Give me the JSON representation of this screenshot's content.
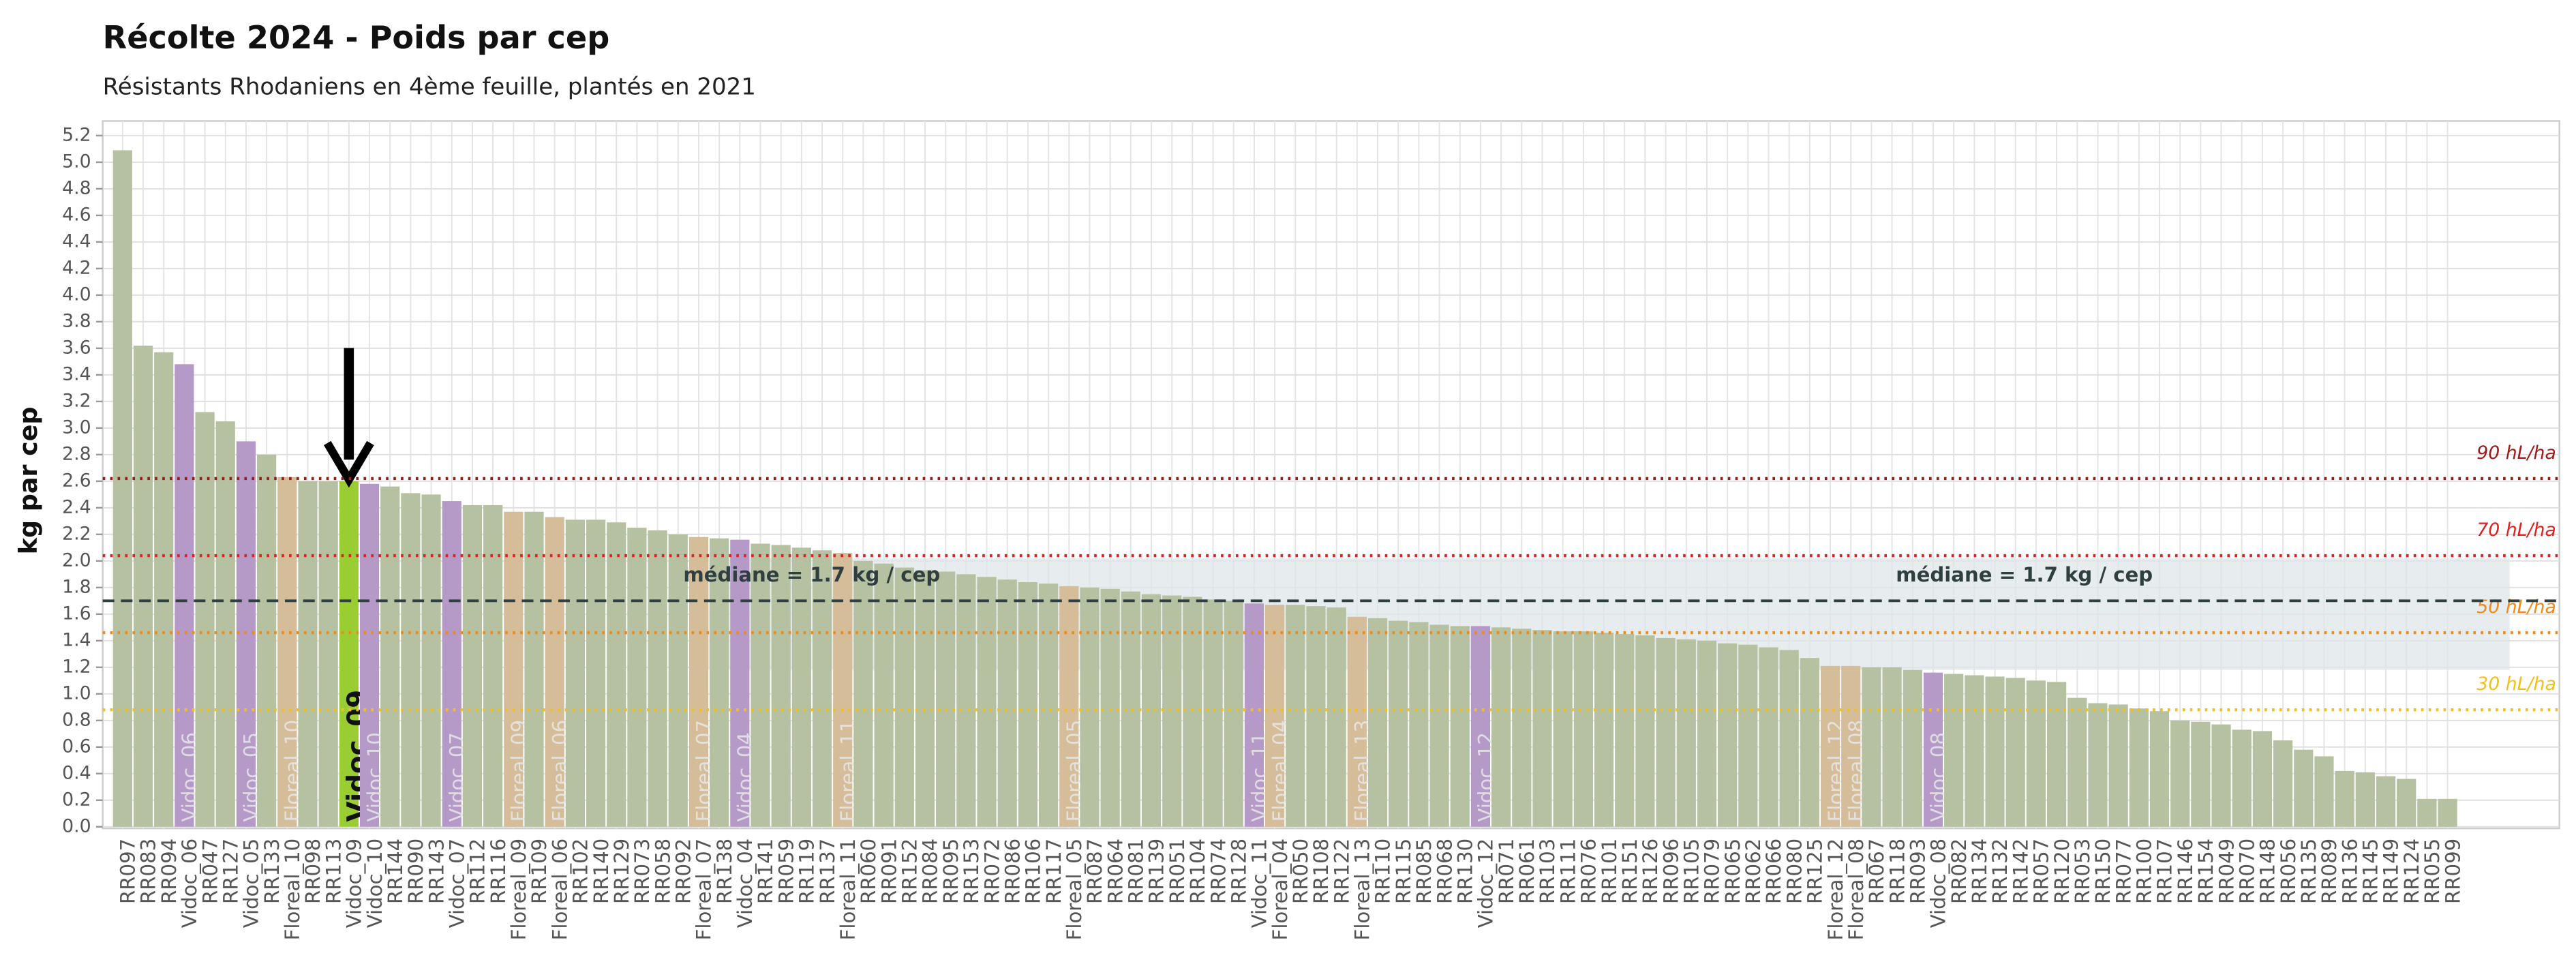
{
  "chart_data": {
    "type": "bar",
    "title": "Récolte 2024 - Poids par cep",
    "subtitle": "Résistants Rhodaniens en 4ème feuille, plantés en 2021",
    "y_label": "kg par cep",
    "categories": [
      "RR097",
      "RR083",
      "RR094",
      "Vidoc_06",
      "RR047",
      "RR127",
      "Vidoc_05",
      "RR133",
      "Floreal_10",
      "RR098",
      "RR113",
      "Vidoc_09",
      "Vidoc_10",
      "RR144",
      "RR090",
      "RR143",
      "Vidoc_07",
      "RR112",
      "RR116",
      "Floreal_09",
      "RR109",
      "Floreal_06",
      "RR102",
      "RR140",
      "RR129",
      "RR073",
      "RR058",
      "RR092",
      "Floreal_07",
      "RR138",
      "Vidoc_04",
      "RR141",
      "RR059",
      "RR119",
      "RR137",
      "Floreal_11",
      "RR060",
      "RR091",
      "RR152",
      "RR084",
      "RR095",
      "RR153",
      "RR072",
      "RR086",
      "RR106",
      "RR117",
      "Floreal_05",
      "RR087",
      "RR064",
      "RR081",
      "RR139",
      "RR051",
      "RR104",
      "RR074",
      "RR128",
      "Vidoc_11",
      "Floreal_04",
      "RR050",
      "RR108",
      "RR122",
      "Floreal_13",
      "RR110",
      "RR115",
      "RR085",
      "RR068",
      "RR130",
      "Vidoc_12",
      "RR071",
      "RR061",
      "RR103",
      "RR111",
      "RR076",
      "RR101",
      "RR151",
      "RR126",
      "RR096",
      "RR105",
      "RR079",
      "RR065",
      "RR062",
      "RR066",
      "RR080",
      "RR125",
      "Floreal_12",
      "Floreal_08",
      "RR067",
      "RR118",
      "RR093",
      "Vidoc_08",
      "RR082",
      "RR134",
      "RR132",
      "RR142",
      "RR057",
      "RR120",
      "RR053",
      "RR150",
      "RR077",
      "RR100",
      "RR107",
      "RR146",
      "RR154",
      "RR049",
      "RR070",
      "RR148",
      "RR056",
      "RR135",
      "RR089",
      "RR136",
      "RR145",
      "RR149",
      "RR124",
      "RR055",
      "RR099"
    ],
    "values": [
      5.09,
      3.62,
      3.57,
      3.48,
      3.12,
      3.05,
      2.9,
      2.8,
      2.63,
      2.6,
      2.6,
      2.6,
      2.58,
      2.56,
      2.51,
      2.5,
      2.45,
      2.42,
      2.42,
      2.37,
      2.37,
      2.33,
      2.31,
      2.31,
      2.29,
      2.25,
      2.23,
      2.2,
      2.18,
      2.17,
      2.16,
      2.13,
      2.12,
      2.1,
      2.08,
      2.06,
      2.0,
      1.98,
      1.95,
      1.93,
      1.92,
      1.9,
      1.88,
      1.86,
      1.84,
      1.83,
      1.81,
      1.8,
      1.79,
      1.77,
      1.75,
      1.74,
      1.73,
      1.71,
      1.7,
      1.68,
      1.67,
      1.67,
      1.66,
      1.65,
      1.58,
      1.57,
      1.55,
      1.54,
      1.52,
      1.51,
      1.51,
      1.5,
      1.49,
      1.48,
      1.47,
      1.47,
      1.46,
      1.45,
      1.44,
      1.42,
      1.41,
      1.4,
      1.38,
      1.37,
      1.35,
      1.33,
      1.27,
      1.21,
      1.21,
      1.2,
      1.2,
      1.18,
      1.16,
      1.15,
      1.14,
      1.13,
      1.12,
      1.1,
      1.09,
      0.97,
      0.93,
      0.92,
      0.89,
      0.87,
      0.8,
      0.79,
      0.77,
      0.73,
      0.72,
      0.65,
      0.58,
      0.53,
      0.42,
      0.41,
      0.38,
      0.36,
      0.21,
      0.21
    ],
    "colors": [
      "#b5c1a0",
      "#b5c1a0",
      "#b5c1a0",
      "#b59ac8",
      "#b5c1a0",
      "#b5c1a0",
      "#b59ac8",
      "#b5c1a0",
      "#d4bd98",
      "#b5c1a0",
      "#b5c1a0",
      "#9acd32",
      "#b59ac8",
      "#b5c1a0",
      "#b5c1a0",
      "#b5c1a0",
      "#b59ac8",
      "#b5c1a0",
      "#b5c1a0",
      "#d4bd98",
      "#b5c1a0",
      "#d4bd98",
      "#b5c1a0",
      "#b5c1a0",
      "#b5c1a0",
      "#b5c1a0",
      "#b5c1a0",
      "#b5c1a0",
      "#d4bd98",
      "#b5c1a0",
      "#b59ac8",
      "#b5c1a0",
      "#b5c1a0",
      "#b5c1a0",
      "#b5c1a0",
      "#d4bd98",
      "#b5c1a0",
      "#b5c1a0",
      "#b5c1a0",
      "#b5c1a0",
      "#b5c1a0",
      "#b5c1a0",
      "#b5c1a0",
      "#b5c1a0",
      "#b5c1a0",
      "#b5c1a0",
      "#d4bd98",
      "#b5c1a0",
      "#b5c1a0",
      "#b5c1a0",
      "#b5c1a0",
      "#b5c1a0",
      "#b5c1a0",
      "#b5c1a0",
      "#b5c1a0",
      "#b59ac8",
      "#d4bd98",
      "#b5c1a0",
      "#b5c1a0",
      "#b5c1a0",
      "#d4bd98",
      "#b5c1a0",
      "#b5c1a0",
      "#b5c1a0",
      "#b5c1a0",
      "#b5c1a0",
      "#b59ac8",
      "#b5c1a0",
      "#b5c1a0",
      "#b5c1a0",
      "#b5c1a0",
      "#b5c1a0",
      "#b5c1a0",
      "#b5c1a0",
      "#b5c1a0",
      "#b5c1a0",
      "#b5c1a0",
      "#b5c1a0",
      "#b5c1a0",
      "#b5c1a0",
      "#b5c1a0",
      "#b5c1a0",
      "#b5c1a0",
      "#d4bd98",
      "#d4bd98",
      "#b5c1a0",
      "#b5c1a0",
      "#b5c1a0",
      "#b59ac8",
      "#b5c1a0",
      "#b5c1a0",
      "#b5c1a0",
      "#b5c1a0",
      "#b5c1a0",
      "#b5c1a0",
      "#b5c1a0",
      "#b5c1a0",
      "#b5c1a0",
      "#b5c1a0",
      "#b5c1a0",
      "#b5c1a0",
      "#b5c1a0",
      "#b5c1a0",
      "#b5c1a0",
      "#b5c1a0",
      "#b5c1a0",
      "#b5c1a0",
      "#b5c1a0",
      "#b5c1a0",
      "#b5c1a0",
      "#b5c1a0",
      "#b5c1a0",
      "#b5c1a0",
      "#b5c1a0"
    ],
    "highlight_color": "#9acd32",
    "inside_label_colors": [
      "#b59ac8",
      "#d4bd98",
      "#9acd32"
    ],
    "ylim": [
      0,
      5.31
    ],
    "yticks": [
      {
        "value": 0,
        "label": "0.0"
      },
      0.2,
      0.4,
      0.6,
      0.8,
      {
        "value": 1,
        "label": "1.0"
      },
      1.2,
      1.4,
      1.6,
      1.8,
      {
        "value": 2,
        "label": "2.0"
      },
      2.2,
      2.4,
      2.6,
      2.8,
      {
        "value": 3,
        "label": "3.0"
      },
      3.2,
      3.4,
      3.6,
      3.8,
      {
        "value": 4,
        "label": "4.0"
      },
      4.2,
      4.4,
      4.6,
      4.8,
      {
        "value": 5,
        "label": "5.0"
      },
      5.2
    ],
    "grid": true,
    "band": {
      "range": [
        1.18,
        2.02
      ],
      "color": "#dfe5ea"
    },
    "median": {
      "value": 1.7,
      "label": "médiane = 1.7 kg / cep",
      "color": "#2f3f3f"
    },
    "reference_lines": [
      {
        "label": "90 hL/ha",
        "value": 2.62,
        "color": "#9b1b1b"
      },
      {
        "label": "70 hL/ha",
        "value": 2.04,
        "color": "#e02020"
      },
      {
        "label": "50 hL/ha",
        "value": 1.46,
        "color": "#ee8a1a"
      },
      {
        "label": "30 hL/ha",
        "value": 0.88,
        "color": "#f0c020"
      }
    ]
  }
}
